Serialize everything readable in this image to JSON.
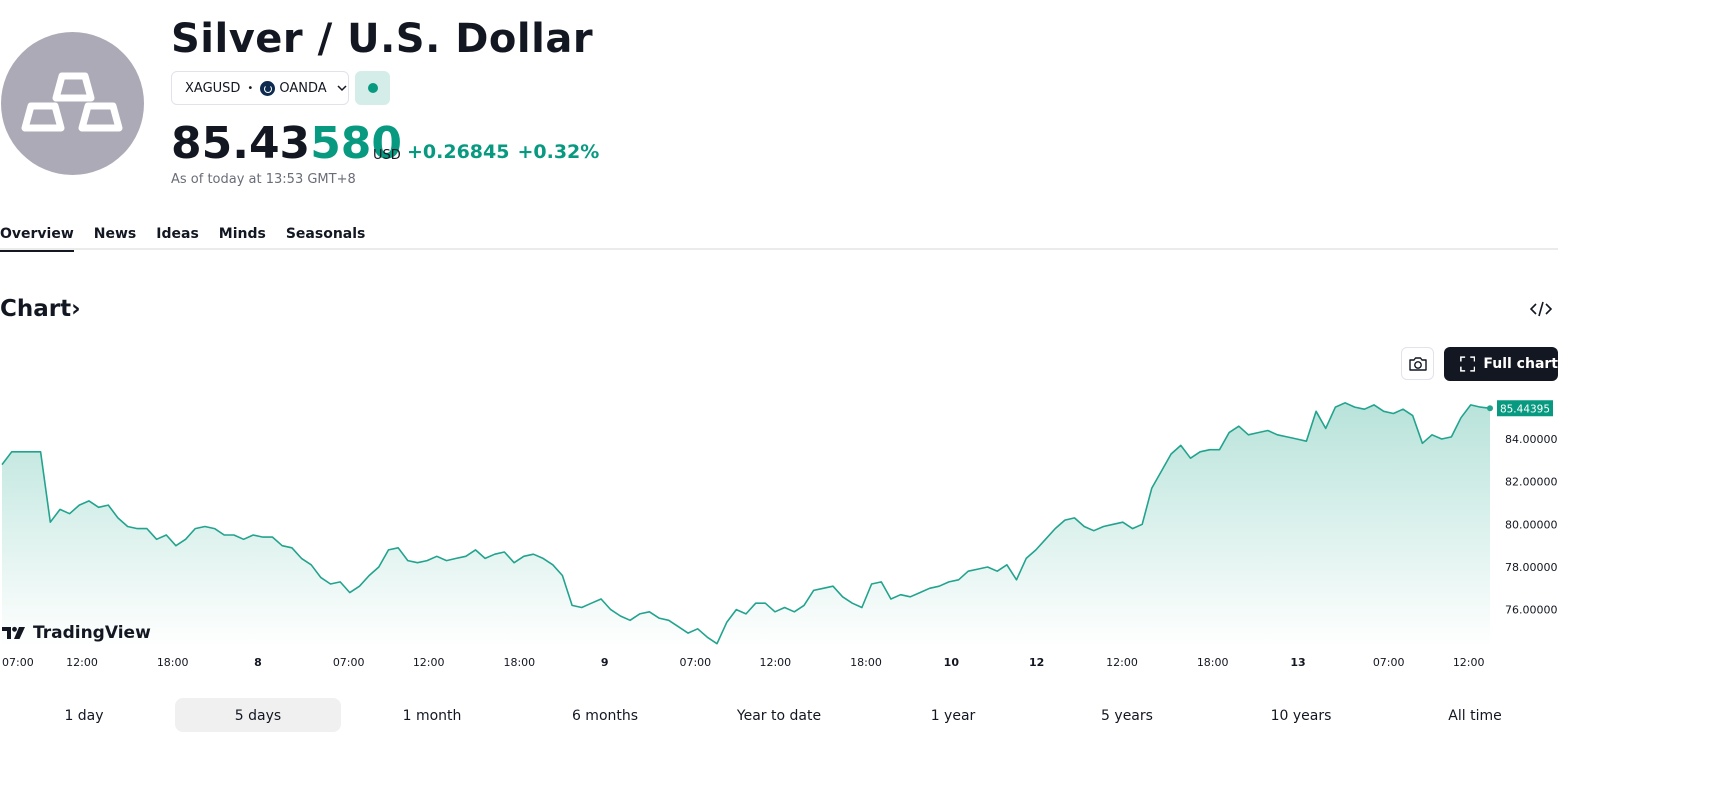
{
  "header": {
    "title": "Silver / U.S. Dollar",
    "symbol": "XAGUSD",
    "separator": "•",
    "exchange": "OANDA",
    "price_main": "85.43",
    "price_tail": "580",
    "currency": "USD",
    "change": "+0.26845",
    "change_pct": "+0.32%",
    "as_of": "As of today at 13:53 GMT+8",
    "market_status": "open"
  },
  "tabs": [
    "Overview",
    "News",
    "Ideas",
    "Minds",
    "Seasonals"
  ],
  "active_tab": "Overview",
  "chart_section": {
    "title": "Chart",
    "full_chart_label": "Full chart",
    "brand": "TradingView",
    "icons": [
      "embed-code-icon",
      "camera-icon",
      "fullscreen-icon",
      "chevron-right-icon",
      "chevron-down-icon"
    ]
  },
  "ranges": {
    "items": [
      "1 day",
      "5 days",
      "1 month",
      "6 months",
      "Year to date",
      "1 year",
      "5 years",
      "10 years",
      "All time"
    ],
    "active": "5 days"
  },
  "colors": {
    "accent": "#089981",
    "line": "#22a38e",
    "area_top": "#b8e3da",
    "text": "#131722",
    "muted": "#6a6d78",
    "logo_bg": "#acaab6"
  },
  "chart_data": {
    "type": "area",
    "title": "",
    "xlabel": "",
    "ylabel": "",
    "ylim": [
      74.2,
      86.3
    ],
    "y_ticks": [
      "84.00000",
      "82.00000",
      "80.00000",
      "78.00000",
      "76.00000"
    ],
    "y_tick_values": [
      84,
      82,
      80,
      78,
      76
    ],
    "last_price_label": "85.44395",
    "last_value": 85.44395,
    "x_tick_labels": [
      "07:00",
      "12:00",
      "18:00",
      "8",
      "07:00",
      "12:00",
      "18:00",
      "9",
      "07:00",
      "12:00",
      "18:00",
      "10",
      "12",
      "12:00",
      "18:00",
      "13",
      "07:00",
      "12:00"
    ],
    "x_tick_bold": [
      false,
      false,
      false,
      true,
      false,
      false,
      false,
      true,
      false,
      false,
      false,
      true,
      true,
      false,
      false,
      true,
      false,
      false
    ],
    "x_tick_index": [
      0,
      15,
      32,
      48,
      65,
      80,
      97,
      113,
      130,
      145,
      162,
      178,
      194,
      210,
      227,
      243,
      260,
      275
    ],
    "values": [
      82.8,
      83.4,
      83.4,
      83.4,
      83.4,
      80.1,
      80.7,
      80.5,
      80.9,
      81.1,
      80.8,
      80.9,
      80.3,
      79.9,
      79.8,
      79.8,
      79.3,
      79.5,
      79.0,
      79.3,
      79.8,
      79.9,
      79.8,
      79.5,
      79.5,
      79.3,
      79.5,
      79.4,
      79.4,
      79.0,
      78.9,
      78.4,
      78.1,
      77.5,
      77.2,
      77.3,
      76.8,
      77.1,
      77.6,
      78.0,
      78.8,
      78.9,
      78.3,
      78.2,
      78.3,
      78.5,
      78.3,
      78.4,
      78.5,
      78.8,
      78.4,
      78.6,
      78.7,
      78.2,
      78.5,
      78.6,
      78.4,
      78.1,
      77.6,
      76.2,
      76.1,
      76.3,
      76.5,
      76.0,
      75.7,
      75.5,
      75.8,
      75.9,
      75.6,
      75.5,
      75.2,
      74.9,
      75.1,
      74.7,
      74.4,
      75.4,
      76.0,
      75.8,
      76.3,
      76.3,
      75.9,
      76.1,
      75.9,
      76.2,
      76.9,
      77.0,
      77.1,
      76.6,
      76.3,
      76.1,
      77.2,
      77.3,
      76.5,
      76.7,
      76.6,
      76.8,
      77.0,
      77.1,
      77.3,
      77.4,
      77.8,
      77.9,
      78.0,
      77.8,
      78.1,
      77.4,
      78.4,
      78.8,
      79.3,
      79.8,
      80.2,
      80.3,
      79.9,
      79.7,
      79.9,
      80.0,
      80.1,
      79.8,
      80.0,
      81.7,
      82.5,
      83.3,
      83.7,
      83.1,
      83.4,
      83.5,
      83.5,
      84.3,
      84.6,
      84.2,
      84.3,
      84.4,
      84.2,
      84.1,
      84.0,
      83.9,
      85.3,
      84.5,
      85.5,
      85.7,
      85.5,
      85.4,
      85.6,
      85.3,
      85.2,
      85.4,
      85.1,
      83.8,
      84.2,
      84.0,
      84.1,
      85.0,
      85.6,
      85.5,
      85.44395
    ],
    "x_extent": [
      0,
      279
    ]
  }
}
